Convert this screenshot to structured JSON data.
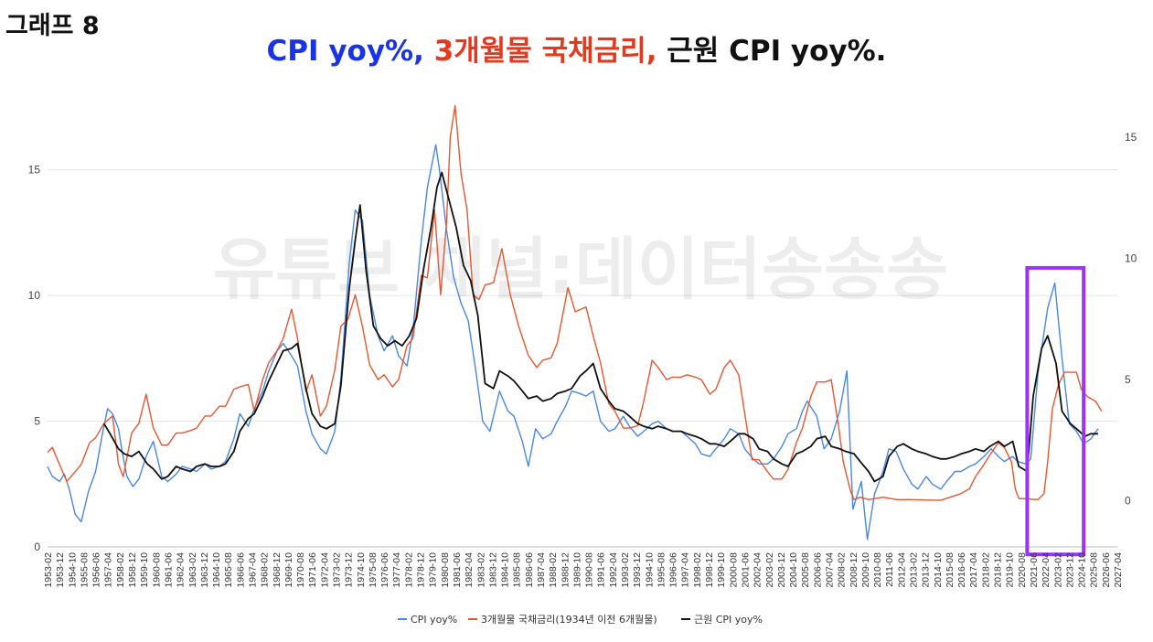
{
  "graph_label": "그래프 8",
  "title": {
    "part1": "CPI yoy%, ",
    "part1_color": "#1a33e6",
    "part2": "3개월물 국채금리, ",
    "part2_color": "#e23a1e",
    "part3": "근원 CPI yoy%.",
    "part3_color": "#111111"
  },
  "watermark": "유튜브 채널:데이터송송송",
  "highlight_color": "#9933ff",
  "chart_data": {
    "type": "line",
    "xlim": [
      "1953-02",
      "2027-04"
    ],
    "ylim_left": [
      0,
      16.3
    ],
    "ylim_right": [
      -1.9,
      15
    ],
    "yticks_left": [
      "0",
      "5",
      "10",
      "15"
    ],
    "yticks_right": [
      "0",
      "5",
      "10",
      "15"
    ],
    "grid": true,
    "legend_position": "bottom",
    "x_tick_labels": [
      "1953-02",
      "1953-12",
      "1954-10",
      "1955-08",
      "1956-06",
      "1957-04",
      "1958-02",
      "1958-12",
      "1959-10",
      "1960-08",
      "1961-06",
      "1962-04",
      "1963-02",
      "1963-12",
      "1964-10",
      "1965-08",
      "1966-06",
      "1967-04",
      "1968-02",
      "1968-12",
      "1969-10",
      "1970-08",
      "1971-06",
      "1972-04",
      "1973-02",
      "1973-12",
      "1974-10",
      "1975-08",
      "1976-06",
      "1977-04",
      "1978-02",
      "1978-12",
      "1979-10",
      "1980-08",
      "1981-06",
      "1982-04",
      "1983-02",
      "1983-12",
      "1984-10",
      "1985-08",
      "1986-06",
      "1987-04",
      "1988-02",
      "1988-12",
      "1989-10",
      "1990-08",
      "1991-06",
      "1992-04",
      "1993-02",
      "1993-12",
      "1994-10",
      "1995-08",
      "1996-06",
      "1997-04",
      "1998-02",
      "1998-12",
      "1999-10",
      "2000-08",
      "2001-06",
      "2002-04",
      "2003-02",
      "2003-12",
      "2004-10",
      "2005-08",
      "2006-06",
      "2007-04",
      "2008-02",
      "2008-12",
      "2009-10",
      "2010-08",
      "2011-06",
      "2012-04",
      "2013-02",
      "2013-12",
      "2014-10",
      "2015-08",
      "2016-06",
      "2017-04",
      "2018-02",
      "2018-12",
      "2019-10",
      "2020-08",
      "2021-06",
      "2022-04",
      "2023-02",
      "2023-12",
      "2024-10",
      "2025-08",
      "2026-06",
      "2027-04"
    ],
    "highlight": {
      "x_start": "2021-01",
      "x_end": "2024-12",
      "y_top": 11.1,
      "y_bottom": -0.3
    },
    "series": [
      {
        "name": "CPI yoy%",
        "color": "#4a86e8",
        "axis": "left",
        "x": [
          "1953-02",
          "1953-06",
          "1953-12",
          "1954-04",
          "1954-08",
          "1955-01",
          "1955-06",
          "1955-12",
          "1956-06",
          "1956-12",
          "1957-04",
          "1957-08",
          "1958-01",
          "1958-04",
          "1958-08",
          "1959-01",
          "1959-06",
          "1959-12",
          "1960-06",
          "1961-01",
          "1961-06",
          "1962-01",
          "1962-06",
          "1963-01",
          "1963-06",
          "1964-01",
          "1964-06",
          "1965-01",
          "1965-06",
          "1966-01",
          "1966-06",
          "1967-01",
          "1967-06",
          "1968-01",
          "1968-06",
          "1969-01",
          "1969-06",
          "1970-01",
          "1970-06",
          "1971-01",
          "1971-06",
          "1972-01",
          "1972-06",
          "1973-01",
          "1973-06",
          "1974-01",
          "1974-06",
          "1974-12",
          "1975-06",
          "1976-01",
          "1976-06",
          "1977-01",
          "1977-06",
          "1978-01",
          "1978-06",
          "1979-01",
          "1979-06",
          "1980-01",
          "1980-04",
          "1980-10",
          "1981-04",
          "1981-10",
          "1982-04",
          "1982-10",
          "1983-04",
          "1983-10",
          "1984-06",
          "1985-01",
          "1985-06",
          "1986-01",
          "1986-06",
          "1986-12",
          "1987-06",
          "1988-01",
          "1988-06",
          "1989-01",
          "1989-06",
          "1990-01",
          "1990-06",
          "1990-12",
          "1991-06",
          "1992-01",
          "1992-06",
          "1993-01",
          "1993-06",
          "1994-01",
          "1994-06",
          "1995-01",
          "1995-06",
          "1996-01",
          "1996-06",
          "1997-01",
          "1997-06",
          "1998-01",
          "1998-06",
          "1999-01",
          "1999-06",
          "2000-01",
          "2000-06",
          "2001-01",
          "2001-06",
          "2002-01",
          "2002-06",
          "2003-01",
          "2003-06",
          "2004-01",
          "2004-06",
          "2005-01",
          "2005-06",
          "2005-10",
          "2006-06",
          "2006-12",
          "2007-06",
          "2008-01",
          "2008-07",
          "2008-12",
          "2009-07",
          "2009-12",
          "2010-06",
          "2011-01",
          "2011-06",
          "2011-12",
          "2012-06",
          "2013-01",
          "2013-06",
          "2014-01",
          "2014-06",
          "2015-01",
          "2015-06",
          "2016-01",
          "2016-06",
          "2017-01",
          "2017-06",
          "2018-01",
          "2018-07",
          "2019-01",
          "2019-06",
          "2020-01",
          "2020-05",
          "2020-12",
          "2021-04",
          "2021-10",
          "2022-06",
          "2022-12",
          "2023-06",
          "2023-12",
          "2024-06",
          "2024-12",
          "2025-06",
          "2025-12"
        ],
        "values": [
          3.2,
          2.8,
          2.6,
          2.9,
          2.3,
          1.3,
          1.0,
          2.2,
          3.0,
          4.6,
          5.5,
          5.3,
          4.7,
          3.8,
          2.8,
          2.4,
          2.7,
          3.6,
          4.2,
          2.8,
          2.6,
          2.9,
          3.2,
          3.1,
          3.0,
          3.3,
          3.1,
          3.2,
          3.4,
          4.3,
          5.3,
          4.8,
          5.5,
          6.2,
          7.0,
          7.8,
          8.1,
          7.6,
          7.2,
          5.4,
          4.5,
          3.9,
          3.7,
          4.6,
          6.7,
          11.3,
          13.4,
          13.0,
          10.0,
          8.4,
          7.8,
          8.4,
          7.6,
          7.2,
          8.6,
          12.2,
          14.3,
          16.0,
          15.0,
          12.6,
          10.7,
          9.7,
          9.0,
          7.1,
          5.0,
          4.6,
          6.2,
          5.4,
          5.2,
          4.2,
          3.2,
          4.7,
          4.3,
          4.5,
          5.0,
          5.6,
          6.2,
          6.1,
          6.0,
          6.2,
          5.0,
          4.6,
          4.7,
          5.2,
          4.8,
          4.4,
          4.6,
          4.9,
          5.0,
          4.7,
          4.6,
          4.6,
          4.4,
          4.1,
          3.7,
          3.6,
          3.9,
          4.3,
          4.7,
          4.5,
          3.9,
          3.5,
          3.3,
          3.3,
          3.5,
          4.0,
          4.5,
          4.7,
          5.4,
          5.8,
          5.2,
          3.9,
          4.3,
          5.4,
          7.0,
          1.5,
          2.6,
          0.3,
          2.1,
          3.0,
          3.9,
          3.8,
          3.1,
          2.5,
          2.3,
          2.8,
          2.5,
          2.3,
          2.6,
          3.0,
          3.0,
          3.2,
          3.3,
          3.6,
          3.9,
          3.6,
          3.4,
          3.6,
          3.4,
          3.3,
          3.5,
          6.9,
          9.5,
          10.5,
          7.5,
          4.9,
          4.6,
          4.1,
          4.3,
          4.7
        ]
      },
      {
        "name": "3개월물 국채금리(1934년 이전 6개월물)",
        "color": "#e8562f",
        "axis": "right",
        "x": [
          "1953-02",
          "1953-06",
          "1953-12",
          "1954-06",
          "1955-01",
          "1955-06",
          "1956-01",
          "1956-06",
          "1957-01",
          "1957-08",
          "1958-01",
          "1958-05",
          "1958-12",
          "1959-06",
          "1959-12",
          "1960-06",
          "1961-01",
          "1961-06",
          "1962-01",
          "1962-06",
          "1963-01",
          "1963-06",
          "1964-01",
          "1964-06",
          "1965-01",
          "1965-06",
          "1966-01",
          "1966-06",
          "1967-01",
          "1967-06",
          "1968-01",
          "1968-06",
          "1969-01",
          "1969-06",
          "1970-01",
          "1970-06",
          "1971-01",
          "1971-06",
          "1972-01",
          "1972-06",
          "1973-01",
          "1973-06",
          "1973-12",
          "1974-06",
          "1974-12",
          "1975-06",
          "1976-01",
          "1976-06",
          "1977-01",
          "1977-06",
          "1978-01",
          "1978-06",
          "1979-01",
          "1979-06",
          "1979-12",
          "1980-05",
          "1980-10",
          "1981-01",
          "1981-05",
          "1981-10",
          "1982-03",
          "1982-08",
          "1983-01",
          "1983-06",
          "1984-01",
          "1984-08",
          "1985-03",
          "1985-10",
          "1986-06",
          "1987-01",
          "1987-06",
          "1988-01",
          "1988-06",
          "1989-03",
          "1989-09",
          "1990-06",
          "1990-12",
          "1991-06",
          "1992-01",
          "1992-06",
          "1993-01",
          "1993-06",
          "1994-01",
          "1994-06",
          "1995-01",
          "1995-06",
          "1996-01",
          "1996-06",
          "1997-01",
          "1997-06",
          "1998-01",
          "1998-06",
          "1999-01",
          "1999-06",
          "2000-01",
          "2000-06",
          "2001-01",
          "2001-06",
          "2001-12",
          "2002-06",
          "2003-01",
          "2003-06",
          "2004-01",
          "2004-06",
          "2005-01",
          "2005-06",
          "2006-01",
          "2006-06",
          "2007-01",
          "2007-06",
          "2007-12",
          "2008-04",
          "2008-10",
          "2009-01",
          "2009-06",
          "2010-01",
          "2011-01",
          "2012-01",
          "2013-01",
          "2014-01",
          "2015-01",
          "2015-12",
          "2016-06",
          "2017-01",
          "2017-06",
          "2018-01",
          "2018-06",
          "2019-01",
          "2019-06",
          "2019-12",
          "2020-03",
          "2020-06",
          "2021-01",
          "2021-10",
          "2022-03",
          "2022-06",
          "2022-10",
          "2023-03",
          "2023-08",
          "2024-01",
          "2024-06",
          "2024-10",
          "2025-03",
          "2025-10",
          "2026-03"
        ],
        "values": [
          2.0,
          2.2,
          1.5,
          0.8,
          1.2,
          1.5,
          2.4,
          2.6,
          3.2,
          3.5,
          1.5,
          1.0,
          2.8,
          3.2,
          4.4,
          3.0,
          2.3,
          2.3,
          2.8,
          2.8,
          2.9,
          3.0,
          3.5,
          3.5,
          3.9,
          3.9,
          4.6,
          4.7,
          4.8,
          3.7,
          5.0,
          5.7,
          6.2,
          6.7,
          7.9,
          6.7,
          4.5,
          5.2,
          3.5,
          3.9,
          5.4,
          7.2,
          7.5,
          8.5,
          7.2,
          5.6,
          5.0,
          5.2,
          4.7,
          5.0,
          6.4,
          6.7,
          9.3,
          9.2,
          12.0,
          8.5,
          11.5,
          15.0,
          16.3,
          13.5,
          12.0,
          8.5,
          8.3,
          8.9,
          9.0,
          10.4,
          8.5,
          7.2,
          6.0,
          5.5,
          5.8,
          5.9,
          6.5,
          8.8,
          7.8,
          8.0,
          6.8,
          5.7,
          4.0,
          3.7,
          3.0,
          3.0,
          3.1,
          4.1,
          5.8,
          5.5,
          5.0,
          5.1,
          5.1,
          5.2,
          5.1,
          5.0,
          4.4,
          4.6,
          5.5,
          5.8,
          5.2,
          3.6,
          1.7,
          1.7,
          1.2,
          0.9,
          0.9,
          1.3,
          2.4,
          3.0,
          4.3,
          4.9,
          4.9,
          5.0,
          3.1,
          1.6,
          0.4,
          0.05,
          0.15,
          0.05,
          0.15,
          0.05,
          0.05,
          0.03,
          0.02,
          0.2,
          0.3,
          0.5,
          1.0,
          1.5,
          1.9,
          2.4,
          2.2,
          1.6,
          0.5,
          0.1,
          0.08,
          0.05,
          0.3,
          1.6,
          3.8,
          4.8,
          5.3,
          5.3,
          5.3,
          4.6,
          4.3,
          4.1,
          3.7
        ]
      },
      {
        "name": "근원 CPI yoy%",
        "color": "#111111",
        "axis": "left",
        "x": [
          "1957-01",
          "1957-06",
          "1958-01",
          "1958-06",
          "1958-12",
          "1959-06",
          "1960-01",
          "1960-06",
          "1961-01",
          "1961-06",
          "1962-01",
          "1962-06",
          "1963-01",
          "1963-06",
          "1964-01",
          "1964-06",
          "1965-01",
          "1965-06",
          "1966-01",
          "1966-06",
          "1967-01",
          "1967-06",
          "1968-01",
          "1968-06",
          "1969-01",
          "1969-06",
          "1970-01",
          "1970-06",
          "1971-01",
          "1971-06",
          "1972-01",
          "1972-06",
          "1973-01",
          "1973-06",
          "1974-01",
          "1974-06",
          "1974-10",
          "1975-03",
          "1975-09",
          "1976-03",
          "1976-09",
          "1977-03",
          "1977-09",
          "1978-03",
          "1978-09",
          "1979-03",
          "1979-09",
          "1980-02",
          "1980-06",
          "1980-12",
          "1981-06",
          "1981-12",
          "1982-06",
          "1982-12",
          "1983-06",
          "1984-01",
          "1984-06",
          "1985-01",
          "1985-06",
          "1986-01",
          "1986-06",
          "1987-01",
          "1987-06",
          "1988-01",
          "1988-06",
          "1989-01",
          "1989-06",
          "1990-01",
          "1990-06",
          "1990-12",
          "1991-06",
          "1992-01",
          "1992-06",
          "1993-01",
          "1993-06",
          "1994-01",
          "1994-06",
          "1995-01",
          "1995-06",
          "1996-01",
          "1996-06",
          "1997-01",
          "1997-06",
          "1998-01",
          "1998-06",
          "1999-01",
          "1999-06",
          "2000-01",
          "2000-06",
          "2001-01",
          "2001-06",
          "2002-01",
          "2002-06",
          "2003-01",
          "2003-06",
          "2004-01",
          "2004-06",
          "2005-01",
          "2005-06",
          "2006-01",
          "2006-06",
          "2007-01",
          "2007-06",
          "2008-01",
          "2008-06",
          "2009-01",
          "2009-06",
          "2010-01",
          "2010-06",
          "2011-01",
          "2011-06",
          "2012-01",
          "2012-06",
          "2013-01",
          "2013-06",
          "2014-01",
          "2014-06",
          "2015-01",
          "2015-06",
          "2016-01",
          "2016-06",
          "2017-01",
          "2017-06",
          "2018-01",
          "2018-06",
          "2019-01",
          "2019-06",
          "2020-01",
          "2020-06",
          "2021-01",
          "2021-06",
          "2022-01",
          "2022-06",
          "2023-01",
          "2023-06",
          "2024-01",
          "2024-06",
          "2025-01",
          "2025-06",
          "2025-12"
        ],
        "values": [
          4.9,
          4.5,
          3.9,
          3.7,
          3.6,
          3.8,
          3.3,
          3.1,
          2.7,
          2.8,
          3.2,
          3.1,
          3.0,
          3.2,
          3.3,
          3.2,
          3.2,
          3.3,
          3.8,
          4.6,
          5.1,
          5.3,
          6.0,
          6.6,
          7.3,
          7.8,
          7.9,
          8.1,
          6.3,
          5.3,
          4.8,
          4.7,
          4.9,
          6.4,
          10.3,
          12.2,
          13.6,
          11.0,
          8.8,
          8.3,
          8.0,
          8.2,
          8.0,
          8.4,
          9.1,
          11.1,
          12.7,
          14.3,
          14.9,
          13.8,
          12.7,
          11.2,
          10.6,
          9.2,
          6.5,
          6.3,
          7.0,
          6.8,
          6.6,
          6.2,
          5.9,
          6.0,
          5.8,
          5.9,
          6.1,
          6.2,
          6.3,
          6.8,
          7.0,
          7.3,
          6.3,
          5.8,
          5.5,
          5.4,
          5.2,
          4.9,
          4.8,
          4.7,
          4.8,
          4.7,
          4.6,
          4.6,
          4.5,
          4.4,
          4.3,
          4.1,
          4.1,
          4.0,
          4.2,
          4.5,
          4.5,
          4.3,
          3.9,
          3.8,
          3.5,
          3.3,
          3.2,
          3.7,
          3.8,
          4.0,
          4.3,
          4.4,
          4.0,
          3.9,
          3.8,
          3.7,
          3.4,
          3.0,
          2.6,
          2.8,
          3.6,
          4.0,
          4.1,
          3.9,
          3.8,
          3.7,
          3.6,
          3.5,
          3.5,
          3.6,
          3.7,
          3.8,
          3.9,
          3.8,
          4.0,
          4.2,
          4.0,
          4.2,
          3.2,
          3.0,
          6.0,
          7.9,
          8.4,
          7.3,
          5.4,
          4.9,
          4.7,
          4.4,
          4.5,
          4.5
        ]
      }
    ]
  }
}
